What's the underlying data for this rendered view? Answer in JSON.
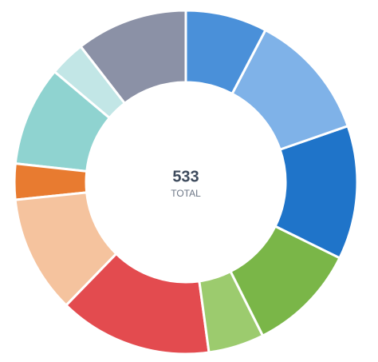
{
  "chart_data": {
    "type": "donut",
    "values": [
      41,
      64,
      67,
      55,
      28,
      77,
      59,
      18,
      50,
      18,
      56
    ],
    "colors": [
      "#4a90d9",
      "#7fb2e8",
      "#1f74c9",
      "#7ab648",
      "#9ccb6e",
      "#e34b4f",
      "#f5c39e",
      "#e87b30",
      "#8fd3d0",
      "#c2e6e6",
      "#8b91a6"
    ],
    "total": 533,
    "total_label": "TOTAL"
  }
}
